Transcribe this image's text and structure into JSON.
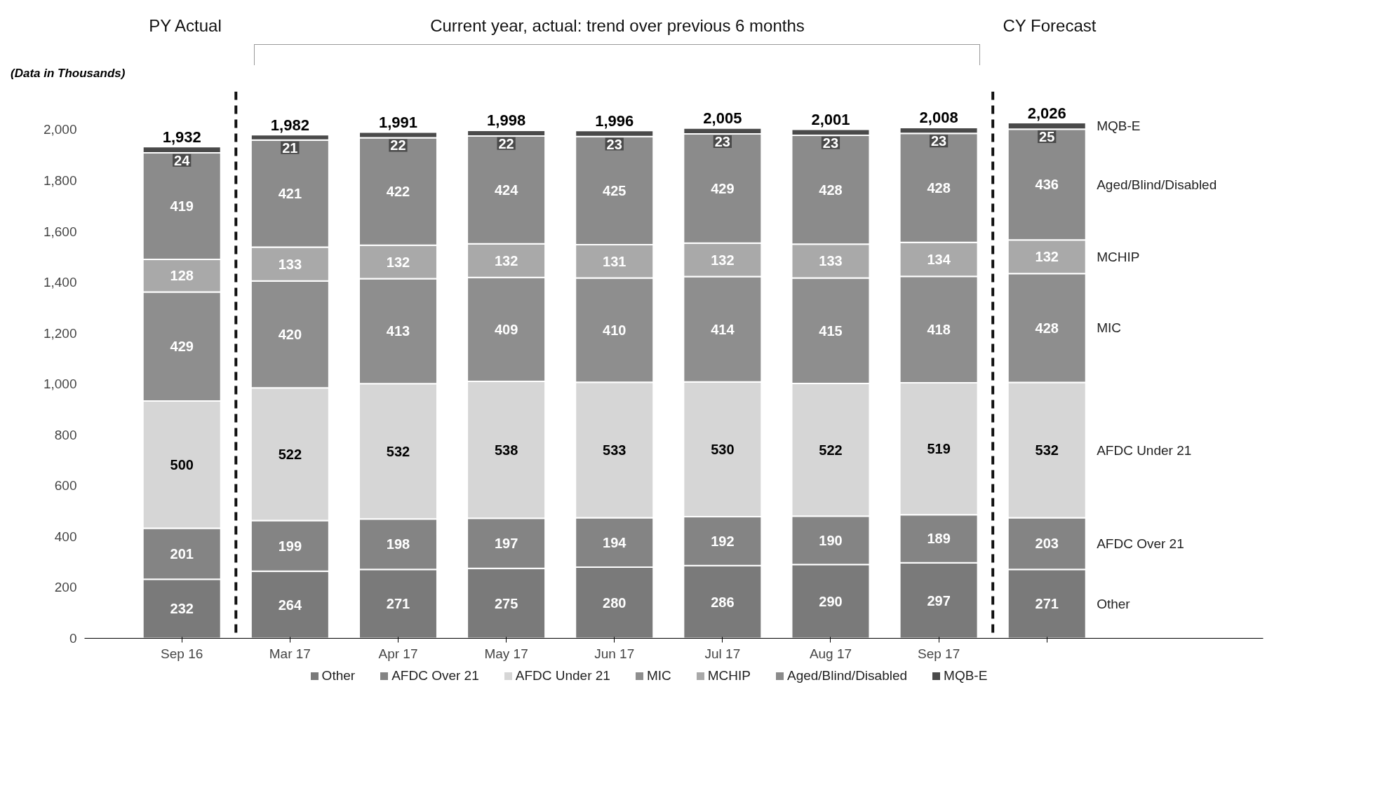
{
  "chart_data": {
    "type": "bar",
    "stacked": true,
    "ylabel": "(Data in Thousands)",
    "categories": [
      "Sep 16",
      "Mar 17",
      "Apr 17",
      "May 17",
      "Jun 17",
      "Jul 17",
      "Aug 17",
      "Sep 17",
      null
    ],
    "series": [
      {
        "name": "Other",
        "color": "#7a7a7a",
        "values": [
          232,
          264,
          271,
          275,
          280,
          286,
          290,
          297,
          271
        ]
      },
      {
        "name": "AFDC Over 21",
        "color": "#848484",
        "values": [
          201,
          199,
          198,
          197,
          194,
          192,
          190,
          189,
          203
        ]
      },
      {
        "name": "AFDC Under 21",
        "color": "#d6d6d6",
        "values": [
          500,
          522,
          532,
          538,
          533,
          530,
          522,
          519,
          532
        ]
      },
      {
        "name": "MIC",
        "color": "#8e8e8e",
        "values": [
          429,
          420,
          413,
          409,
          410,
          414,
          415,
          418,
          428
        ]
      },
      {
        "name": "MCHIP",
        "color": "#a9a9a9",
        "values": [
          128,
          133,
          132,
          132,
          131,
          132,
          133,
          134,
          132
        ]
      },
      {
        "name": "Aged/Blind/Disabled",
        "color": "#8b8b8b",
        "values": [
          419,
          421,
          422,
          424,
          425,
          429,
          428,
          428,
          436
        ]
      },
      {
        "name": "MQB-E",
        "color": "#4a4a4a",
        "values": [
          24,
          21,
          22,
          22,
          23,
          23,
          23,
          23,
          25
        ]
      }
    ],
    "data_labels": true,
    "totals": [
      "1,932",
      "1,982",
      "1,991",
      "1,998",
      "1,996",
      "2,005",
      "2,001",
      "2,008",
      "2,026"
    ],
    "ylim": [
      0,
      2150
    ],
    "yticks": [
      0,
      {
        "value": 200,
        "label": "200"
      },
      {
        "value": 400,
        "label": "400"
      },
      {
        "value": 600,
        "label": "600"
      },
      {
        "value": 800,
        "label": "800"
      },
      {
        "value": 1000,
        "label": "1,000"
      },
      {
        "value": 1200,
        "label": "1,200"
      },
      {
        "value": 1400,
        "label": "1,400"
      },
      {
        "value": 1600,
        "label": "1,600"
      },
      {
        "value": 1800,
        "label": "1,800"
      },
      {
        "value": 2000,
        "label": "2,000"
      }
    ],
    "grid": false,
    "legend": "bottom",
    "annotations": [
      "PY Actual",
      "Current year, actual: trend over previous 6 months",
      "CY Forecast"
    ]
  }
}
